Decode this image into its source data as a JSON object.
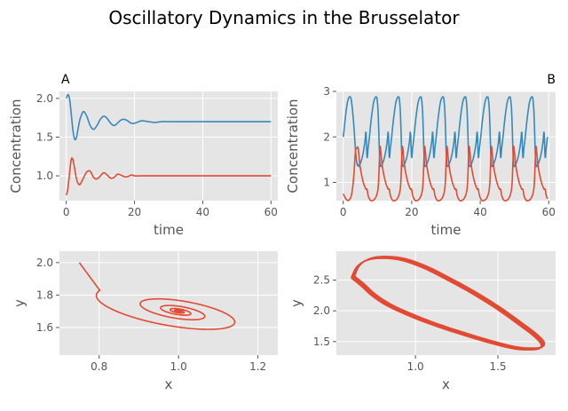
{
  "figure": {
    "title": "Oscillatory Dynamics in the Brusselator"
  },
  "colors": {
    "axes_bg": "#E5E5E5",
    "grid": "#FFFFFF",
    "tick_text": "#555555",
    "label_text": "#555555",
    "x_series": "#E24A33",
    "y_series": "#348ABD"
  },
  "chart_data": [
    {
      "panel": "A",
      "type": "line",
      "panel_label": "A",
      "panel_label_position": "top-left",
      "xlabel": "time",
      "ylabel": "Concentration",
      "xlim": [
        -2,
        62
      ],
      "ylim": [
        0.68,
        2.09
      ],
      "xticks": [
        0,
        20,
        40,
        60
      ],
      "yticks": [
        1.0,
        1.5,
        2.0
      ],
      "ytick_labels": [
        "1.0",
        "1.5",
        "2.0"
      ],
      "grid": true,
      "series": [
        {
          "color": "#348ABD",
          "x": [
            0,
            0.5,
            1,
            1.5,
            2,
            2.5,
            3,
            3.5,
            4,
            5,
            6,
            7,
            8,
            9,
            10,
            11,
            12,
            13,
            14,
            15,
            16,
            17,
            18,
            19,
            20,
            22,
            24,
            26,
            28,
            30,
            32,
            35,
            40,
            45,
            50,
            55,
            60
          ],
          "values": [
            2.0,
            2.05,
            1.98,
            1.78,
            1.57,
            1.47,
            1.5,
            1.62,
            1.73,
            1.83,
            1.77,
            1.65,
            1.6,
            1.65,
            1.73,
            1.77,
            1.74,
            1.68,
            1.65,
            1.68,
            1.72,
            1.73,
            1.71,
            1.68,
            1.68,
            1.71,
            1.7,
            1.69,
            1.7,
            1.7,
            1.7,
            1.7,
            1.7,
            1.7,
            1.7,
            1.7,
            1.7
          ]
        },
        {
          "color": "#E24A33",
          "x": [
            0,
            0.5,
            1,
            1.5,
            2,
            2.5,
            3,
            3.5,
            4,
            5,
            6,
            7,
            8,
            9,
            10,
            11,
            12,
            13,
            14,
            15,
            16,
            17,
            18,
            19,
            20,
            22,
            24,
            26,
            28,
            30,
            32,
            35,
            40,
            45,
            50,
            55,
            60
          ],
          "values": [
            0.75,
            0.85,
            1.05,
            1.22,
            1.2,
            1.08,
            0.96,
            0.9,
            0.89,
            0.97,
            1.05,
            1.06,
            0.98,
            0.96,
            1.0,
            1.04,
            1.01,
            0.97,
            0.98,
            1.02,
            1.01,
            0.99,
            0.99,
            1.01,
            1.0,
            1.0,
            1.0,
            1.0,
            1.0,
            1.0,
            1.0,
            1.0,
            1.0,
            1.0,
            1.0,
            1.0,
            1.0
          ]
        }
      ]
    },
    {
      "panel": "B",
      "type": "line",
      "panel_label": "B",
      "panel_label_position": "top-right",
      "xlabel": "time",
      "ylabel": "Concentration",
      "xlim": [
        -2,
        62
      ],
      "ylim": [
        0.6,
        3.0
      ],
      "xticks": [
        0,
        20,
        40,
        60
      ],
      "yticks": [
        1,
        2,
        3
      ],
      "ytick_labels": [
        "1",
        "2",
        "3"
      ],
      "grid": true,
      "period": 6.5,
      "series": [
        {
          "color": "#348ABD",
          "x_phase": [
            0,
            0.3,
            0.6,
            1.0,
            1.4,
            1.8,
            2.2,
            2.6,
            2.9,
            3.2,
            3.5,
            3.7,
            3.9,
            4.1,
            4.3,
            4.6,
            5.0,
            5.4,
            5.8,
            6.2,
            6.5
          ],
          "values_phase": [
            1.4,
            1.55,
            1.75,
            2.0,
            2.3,
            2.55,
            2.75,
            2.85,
            2.88,
            2.85,
            2.6,
            2.2,
            1.7,
            1.4,
            1.35,
            1.38,
            1.45,
            1.55,
            1.7,
            1.9,
            2.1
          ],
          "first_values": [
            2.0,
            2.3,
            2.6,
            2.8,
            2.88,
            2.85,
            2.6,
            2.2,
            1.7,
            1.4
          ]
        },
        {
          "color": "#E24A33",
          "x_phase": [
            0,
            0.3,
            0.6,
            1.0,
            1.4,
            1.8,
            2.2,
            2.6,
            2.9,
            3.2,
            3.5,
            3.7,
            3.9,
            4.1,
            4.3,
            4.6,
            5.0,
            5.4,
            5.8,
            6.2,
            6.5
          ],
          "values_phase": [
            1.05,
            0.85,
            0.72,
            0.64,
            0.6,
            0.6,
            0.61,
            0.64,
            0.68,
            0.74,
            0.85,
            1.05,
            1.45,
            1.78,
            1.7,
            1.45,
            1.25,
            1.1,
            0.98,
            0.9,
            0.85
          ],
          "first_values": [
            0.75,
            0.68,
            0.63,
            0.6,
            0.62,
            0.68,
            0.85,
            1.2,
            1.7,
            1.75
          ]
        }
      ]
    },
    {
      "panel": "C",
      "type": "line",
      "xlabel": "x",
      "ylabel": "y",
      "xlim": [
        0.7,
        1.25
      ],
      "ylim": [
        1.43,
        2.07
      ],
      "xticks": [
        0.8,
        1.0,
        1.2
      ],
      "xtick_labels": [
        "0.8",
        "1.0",
        "1.2"
      ],
      "yticks": [
        1.6,
        1.8,
        2.0
      ],
      "ytick_labels": [
        "1.6",
        "1.8",
        "2.0"
      ],
      "grid": true,
      "series": [
        {
          "color": "#E24A33",
          "start": [
            0.75,
            2.0
          ],
          "spiral": {
            "center": [
              1.0,
              1.7
            ],
            "decay": 0.06
          }
        }
      ]
    },
    {
      "panel": "D",
      "type": "line",
      "xlabel": "x",
      "ylabel": "y",
      "xlim": [
        0.52,
        1.85
      ],
      "ylim": [
        1.28,
        2.97
      ],
      "xticks": [
        1.0,
        1.5
      ],
      "xtick_labels": [
        "1.0",
        "1.5"
      ],
      "yticks": [
        1.5,
        2.0,
        2.5
      ],
      "ytick_labels": [
        "1.5",
        "2.0",
        "2.5"
      ],
      "grid": true,
      "series": [
        {
          "color": "#E24A33",
          "loop_x": [
            0.62,
            0.66,
            0.75,
            0.9,
            1.05,
            1.2,
            1.35,
            1.5,
            1.62,
            1.72,
            1.77,
            1.76,
            1.7,
            1.6,
            1.45,
            1.3,
            1.15,
            1.0,
            0.85,
            0.75,
            0.68,
            0.62
          ],
          "loop_y": [
            2.55,
            2.75,
            2.86,
            2.85,
            2.72,
            2.52,
            2.3,
            2.05,
            1.82,
            1.62,
            1.48,
            1.4,
            1.38,
            1.4,
            1.5,
            1.62,
            1.75,
            1.9,
            2.08,
            2.25,
            2.42,
            2.55
          ]
        }
      ]
    }
  ]
}
